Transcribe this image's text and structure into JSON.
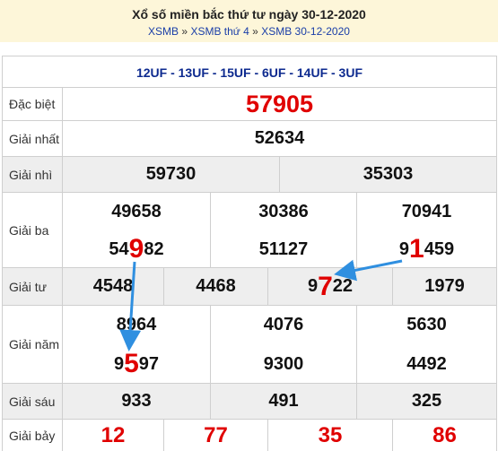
{
  "header": {
    "title": "Xổ số miền bắc thứ tư ngày 30-12-2020",
    "breadcrumb": [
      "XSMB",
      "XSMB thứ 4",
      "XSMB 30-12-2020"
    ],
    "separator": "»"
  },
  "codes": "12UF - 13UF - 15UF - 6UF - 14UF - 3UF",
  "prizes": {
    "dac_biet": {
      "label": "Đặc biệt",
      "numbers": [
        "57905"
      ]
    },
    "nhat": {
      "label": "Giải nhất",
      "numbers": [
        "52634"
      ]
    },
    "nhi": {
      "label": "Giải nhì",
      "numbers": [
        "59730",
        "35303"
      ]
    },
    "ba": {
      "label": "Giải ba",
      "numbers": [
        "49658",
        "30386",
        "70941",
        "54982",
        "51127",
        "91459"
      ]
    },
    "tu": {
      "label": "Giải tư",
      "numbers": [
        "4548",
        "4468",
        "9722",
        "1979"
      ]
    },
    "nam": {
      "label": "Giải năm",
      "numbers": [
        "8964",
        "4076",
        "5630",
        "9597",
        "9300",
        "4492"
      ]
    },
    "sau": {
      "label": "Giải sáu",
      "numbers": [
        "933",
        "491",
        "325"
      ]
    },
    "bay": {
      "label": "Giải bảy",
      "numbers": [
        "12",
        "77",
        "35",
        "86"
      ]
    }
  },
  "highlights": [
    {
      "prize": "ba",
      "index": 3,
      "digit_position": 2,
      "digit": "9"
    },
    {
      "prize": "ba",
      "index": 5,
      "digit_position": 1,
      "digit": "1"
    },
    {
      "prize": "tu",
      "index": 2,
      "digit_position": 1,
      "digit": "7"
    },
    {
      "prize": "nam",
      "index": 3,
      "digit_position": 1,
      "digit": "5"
    }
  ],
  "colors": {
    "header_bg": "#fdf6d9",
    "link": "#1a3ea8",
    "codes": "#0d2a8f",
    "red": "#e00000",
    "arrow": "#2f8fe0",
    "shade": "#eeeeee"
  }
}
